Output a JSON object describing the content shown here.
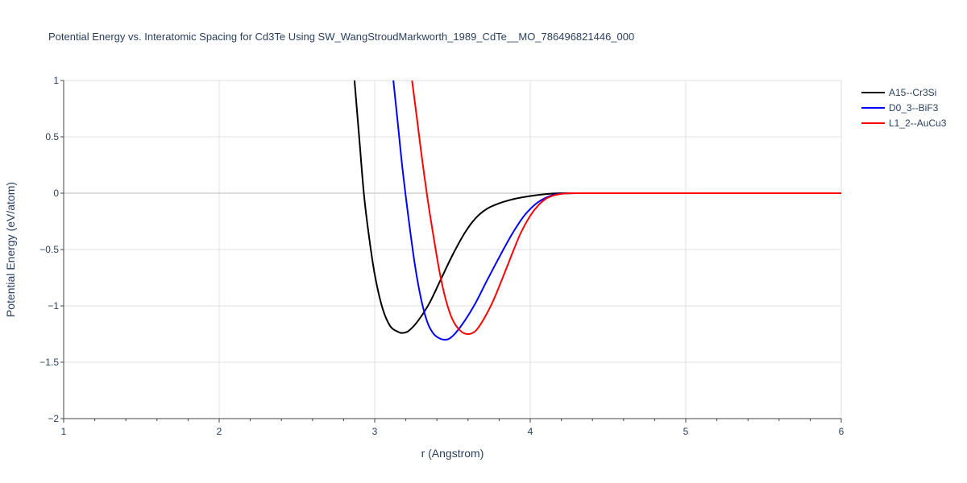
{
  "chart_data": {
    "type": "line",
    "title": "Potential Energy vs. Interatomic Spacing for Cd3Te Using SW_WangStroudMarkworth_1989_CdTe__MO_786496821446_000",
    "xlabel": "r (Angstrom)",
    "ylabel": "Potential Energy (eV/atom)",
    "xlim": [
      1,
      6
    ],
    "ylim": [
      -2,
      1
    ],
    "x_ticks": [
      1,
      2,
      3,
      4,
      5,
      6
    ],
    "x_tick_labels": [
      "1",
      "2",
      "3",
      "4",
      "5",
      "6"
    ],
    "y_ticks": [
      1,
      0.5,
      0,
      -0.5,
      -1,
      -1.5,
      -2
    ],
    "y_tick_labels": [
      "1",
      "0.5",
      "0",
      "−0.5",
      "−1",
      "−1.5",
      "−2"
    ],
    "grid": true,
    "legend_position": "top-right",
    "series": [
      {
        "name": "A15--Cr3Si",
        "color": "#000000",
        "x": [
          2.87,
          2.9,
          2.93,
          2.96,
          3.0,
          3.05,
          3.1,
          3.15,
          3.18,
          3.22,
          3.28,
          3.35,
          3.42,
          3.5,
          3.58,
          3.65,
          3.72,
          3.8,
          3.9,
          4.0,
          4.1,
          4.2,
          4.3,
          4.5,
          5.0,
          6.0
        ],
        "y": [
          1.0,
          0.5,
          0.0,
          -0.35,
          -0.72,
          -1.02,
          -1.18,
          -1.23,
          -1.24,
          -1.22,
          -1.13,
          -0.98,
          -0.78,
          -0.55,
          -0.35,
          -0.22,
          -0.14,
          -0.09,
          -0.05,
          -0.025,
          -0.008,
          0.0,
          0.0,
          0.0,
          0.0,
          0.0
        ]
      },
      {
        "name": "D0_3--BiF3",
        "color": "#0000ff",
        "x": [
          3.12,
          3.15,
          3.18,
          3.22,
          3.26,
          3.3,
          3.34,
          3.38,
          3.42,
          3.45,
          3.48,
          3.52,
          3.58,
          3.65,
          3.72,
          3.8,
          3.88,
          3.95,
          4.0,
          4.05,
          4.1,
          4.15,
          4.2,
          4.3,
          4.5,
          5.0,
          6.0
        ],
        "y": [
          1.0,
          0.6,
          0.2,
          -0.25,
          -0.65,
          -0.95,
          -1.15,
          -1.25,
          -1.29,
          -1.3,
          -1.29,
          -1.24,
          -1.13,
          -0.97,
          -0.78,
          -0.57,
          -0.37,
          -0.22,
          -0.14,
          -0.08,
          -0.04,
          -0.015,
          -0.004,
          0.0,
          0.0,
          0.0,
          0.0
        ]
      },
      {
        "name": "L1_2--AuCu3",
        "color": "#ff0000",
        "x": [
          3.24,
          3.27,
          3.3,
          3.34,
          3.38,
          3.42,
          3.46,
          3.5,
          3.55,
          3.6,
          3.65,
          3.7,
          3.76,
          3.82,
          3.88,
          3.94,
          4.0,
          4.05,
          4.1,
          4.15,
          4.2,
          4.25,
          4.3,
          4.5,
          5.0,
          6.0
        ],
        "y": [
          1.0,
          0.68,
          0.35,
          -0.05,
          -0.4,
          -0.72,
          -0.96,
          -1.12,
          -1.22,
          -1.25,
          -1.22,
          -1.12,
          -0.96,
          -0.76,
          -0.55,
          -0.35,
          -0.2,
          -0.11,
          -0.05,
          -0.02,
          -0.006,
          -0.001,
          0.0,
          0.0,
          0.0,
          0.0
        ]
      }
    ]
  }
}
